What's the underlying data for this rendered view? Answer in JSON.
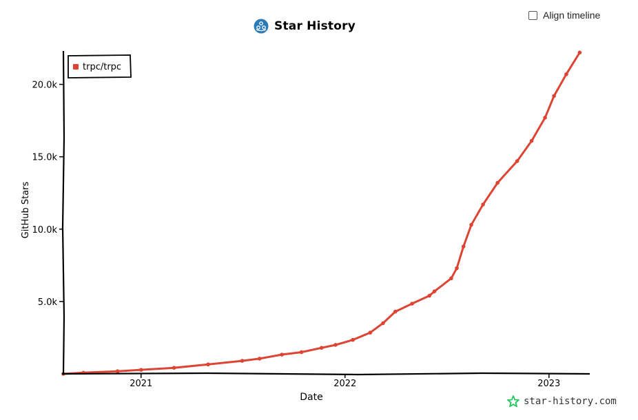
{
  "controls": {
    "align_timeline_label": "Align timeline",
    "align_timeline_checked": false
  },
  "brand": {
    "title": "Star History",
    "watermark": "star-history.com",
    "logo_icon": "star-history-logo-icon",
    "accent": "#2b7bb9",
    "watermark_icon_color": "#22c55e"
  },
  "chart_data": {
    "type": "line",
    "title": "Star History",
    "xlabel": "Date",
    "ylabel": "GitHub Stars",
    "ylim": [
      0,
      22500
    ],
    "xlim": [
      "2020-08-15",
      "2023-03-15"
    ],
    "x_ticks": [
      {
        "date": "2021-01-01",
        "label": "2021"
      },
      {
        "date": "2022-01-01",
        "label": "2022"
      },
      {
        "date": "2023-01-01",
        "label": "2023"
      }
    ],
    "y_ticks": [
      {
        "value": 5000,
        "label": "5.0k"
      },
      {
        "value": 10000,
        "label": "10.0k"
      },
      {
        "value": 15000,
        "label": "15.0k"
      },
      {
        "value": 20000,
        "label": "20.0k"
      }
    ],
    "legend": {
      "position": "top-left"
    },
    "series": [
      {
        "name": "trpc/trpc",
        "color": "#dd4433",
        "points": [
          {
            "x": "2020-08-15",
            "y": 0
          },
          {
            "x": "2020-09-20",
            "y": 80
          },
          {
            "x": "2020-11-20",
            "y": 180
          },
          {
            "x": "2021-01-01",
            "y": 280
          },
          {
            "x": "2021-03-01",
            "y": 420
          },
          {
            "x": "2021-05-01",
            "y": 650
          },
          {
            "x": "2021-07-01",
            "y": 900
          },
          {
            "x": "2021-08-01",
            "y": 1050
          },
          {
            "x": "2021-09-10",
            "y": 1330
          },
          {
            "x": "2021-10-15",
            "y": 1500
          },
          {
            "x": "2021-11-20",
            "y": 1800
          },
          {
            "x": "2021-12-15",
            "y": 2000
          },
          {
            "x": "2022-01-15",
            "y": 2350
          },
          {
            "x": "2022-02-15",
            "y": 2850
          },
          {
            "x": "2022-03-10",
            "y": 3500
          },
          {
            "x": "2022-04-01",
            "y": 4300
          },
          {
            "x": "2022-05-01",
            "y": 4850
          },
          {
            "x": "2022-06-01",
            "y": 5400
          },
          {
            "x": "2022-06-10",
            "y": 5700
          },
          {
            "x": "2022-07-10",
            "y": 6600
          },
          {
            "x": "2022-07-20",
            "y": 7300
          },
          {
            "x": "2022-08-01",
            "y": 8800
          },
          {
            "x": "2022-08-15",
            "y": 10300
          },
          {
            "x": "2022-09-05",
            "y": 11700
          },
          {
            "x": "2022-10-01",
            "y": 13200
          },
          {
            "x": "2022-11-05",
            "y": 14700
          },
          {
            "x": "2022-12-01",
            "y": 16100
          },
          {
            "x": "2022-12-25",
            "y": 17700
          },
          {
            "x": "2023-01-10",
            "y": 19200
          },
          {
            "x": "2023-02-01",
            "y": 20700
          },
          {
            "x": "2023-02-25",
            "y": 22200
          }
        ]
      }
    ]
  }
}
